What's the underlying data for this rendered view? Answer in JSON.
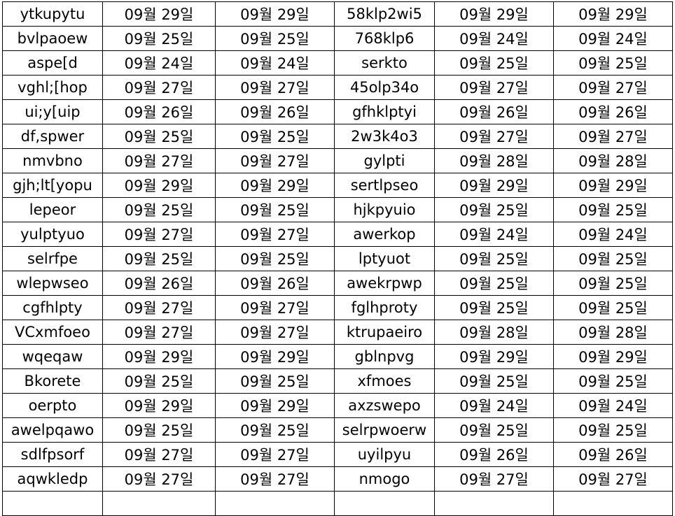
{
  "rows": [
    [
      "ytkupytu",
      "09월 29일",
      "09월 29일",
      "58klp2wi5",
      "09월 29일",
      "09월 29일"
    ],
    [
      "bvlpaoew",
      "09월 25일",
      "09월 25일",
      "768klp6",
      "09월 24일",
      "09월 24일"
    ],
    [
      "aspe[d",
      "09월 24일",
      "09월 24일",
      "serkto",
      "09월 25일",
      "09월 25일"
    ],
    [
      "vghl;[hop",
      "09월 27일",
      "09월 27일",
      "45olp34o",
      "09월 27일",
      "09월 27일"
    ],
    [
      "ui;y[uip",
      "09월 26일",
      "09월 26일",
      "gfhklptyi",
      "09월 26일",
      "09월 26일"
    ],
    [
      "df,spwer",
      "09월 25일",
      "09월 25일",
      "2w3k4o3",
      "09월 27일",
      "09월 27일"
    ],
    [
      "nmvbno",
      "09월 27일",
      "09월 27일",
      "gylpti",
      "09월 28일",
      "09월 28일"
    ],
    [
      "gjh;lt[yopu",
      "09월 29일",
      "09월 29일",
      "sertlpseo",
      "09월 29일",
      "09월 29일"
    ],
    [
      "lepeor",
      "09월 25일",
      "09월 25일",
      "hjkpyuio",
      "09월 25일",
      "09월 25일"
    ],
    [
      "yulptyuo",
      "09월 27일",
      "09월 27일",
      "awerkop",
      "09월 24일",
      "09월 24일"
    ],
    [
      "selrfpe",
      "09월 25일",
      "09월 25일",
      "lptyuot",
      "09월 25일",
      "09월 25일"
    ],
    [
      "wlepwseo",
      "09월 26일",
      "09월 26일",
      "awekrpwp",
      "09월 25일",
      "09월 25일"
    ],
    [
      "cgfhlpty",
      "09월 27일",
      "09월 27일",
      "fglhproty",
      "09월 25일",
      "09월 25일"
    ],
    [
      "VCxmfoeo",
      "09월 27일",
      "09월 27일",
      "ktrupaeiro",
      "09월 28일",
      "09월 28일"
    ],
    [
      "wqeqaw",
      "09월 29일",
      "09월 29일",
      "gblnpvg",
      "09월 29일",
      "09월 29일"
    ],
    [
      "Bkorete",
      "09월 25일",
      "09월 25일",
      "xfmoes",
      "09월 25일",
      "09월 25일"
    ],
    [
      "oerpto",
      "09월 29일",
      "09월 29일",
      "axzswepo",
      "09월 24일",
      "09월 24일"
    ],
    [
      "awelpqawo",
      "09월 25일",
      "09월 25일",
      "selrpwoerw",
      "09월 25일",
      "09월 25일"
    ],
    [
      "sdlfpsorf",
      "09월 27일",
      "09월 27일",
      "uyilpyu",
      "09월 26일",
      "09월 26일"
    ],
    [
      "aqwkledp",
      "09월 27일",
      "09월 27일",
      "nmogo",
      "09월 27일",
      "09월 27일"
    ]
  ]
}
